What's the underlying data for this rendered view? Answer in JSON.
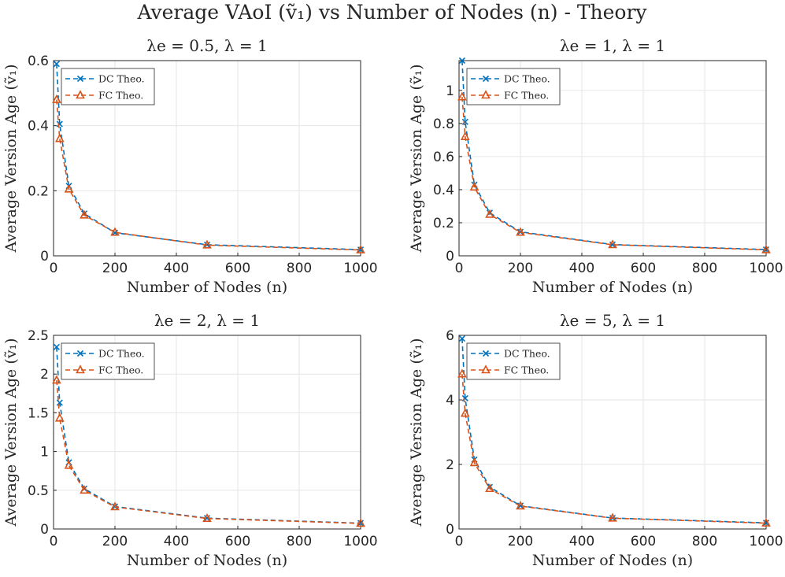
{
  "figure": {
    "suptitle": "Average VAoI (ṽ₁) vs Number of Nodes (n) - Theory"
  },
  "chart_data": [
    {
      "type": "line",
      "title": "λe = 0.5, λ = 1",
      "xlabel": "Number of Nodes (n)",
      "ylabel": "Average Version Age (ṽ₁)",
      "xlim": [
        0,
        1000
      ],
      "ylim": [
        0,
        0.6
      ],
      "xticks": [
        0,
        200,
        400,
        600,
        800,
        1000
      ],
      "yticks": [
        0,
        0.2,
        0.4,
        0.6
      ],
      "ytick_labels": [
        "0",
        "0.2",
        "0.4",
        "0.6"
      ],
      "x": [
        10,
        20,
        50,
        100,
        200,
        500,
        1000
      ],
      "series": [
        {
          "name": "DC Theo.",
          "color": "#0072BD",
          "marker": "x",
          "values": [
            0.59,
            0.405,
            0.215,
            0.13,
            0.071,
            0.034,
            0.019
          ]
        },
        {
          "name": "FC Theo.",
          "color": "#D95319",
          "marker": "triangle",
          "values": [
            0.48,
            0.36,
            0.205,
            0.125,
            0.072,
            0.033,
            0.018
          ]
        }
      ],
      "legend": "top-left",
      "grid": true
    },
    {
      "type": "line",
      "title": "λe = 1, λ = 1",
      "xlabel": "Number of Nodes (n)",
      "ylabel": "Average Version Age (ṽ₁)",
      "xlim": [
        0,
        1000
      ],
      "ylim": [
        0,
        1.18
      ],
      "xticks": [
        0,
        200,
        400,
        600,
        800,
        1000
      ],
      "yticks": [
        0,
        0.2,
        0.4,
        0.6,
        0.8,
        1
      ],
      "ytick_labels": [
        "0",
        "0.2",
        "0.4",
        "0.6",
        "0.8",
        "1"
      ],
      "x": [
        10,
        20,
        50,
        100,
        200,
        500,
        1000
      ],
      "series": [
        {
          "name": "DC Theo.",
          "color": "#0072BD",
          "marker": "x",
          "values": [
            1.18,
            0.81,
            0.43,
            0.26,
            0.145,
            0.068,
            0.038
          ]
        },
        {
          "name": "FC Theo.",
          "color": "#D95319",
          "marker": "triangle",
          "values": [
            0.96,
            0.72,
            0.415,
            0.25,
            0.142,
            0.067,
            0.036
          ]
        }
      ],
      "legend": "top-left",
      "grid": true
    },
    {
      "type": "line",
      "title": "λe = 2, λ = 1",
      "xlabel": "Number of Nodes (n)",
      "ylabel": "Average Version Age (ṽ₁)",
      "xlim": [
        0,
        1000
      ],
      "ylim": [
        0,
        2.5
      ],
      "xticks": [
        0,
        200,
        400,
        600,
        800,
        1000
      ],
      "yticks": [
        0,
        0.5,
        1,
        1.5,
        2,
        2.5
      ],
      "ytick_labels": [
        "0",
        "0.5",
        "1",
        "1.5",
        "2",
        "2.5"
      ],
      "x": [
        10,
        20,
        50,
        100,
        200,
        500,
        1000
      ],
      "series": [
        {
          "name": "DC Theo.",
          "color": "#0072BD",
          "marker": "x",
          "values": [
            2.35,
            1.63,
            0.86,
            0.52,
            0.29,
            0.14,
            0.075
          ]
        },
        {
          "name": "FC Theo.",
          "color": "#D95319",
          "marker": "triangle",
          "values": [
            1.92,
            1.43,
            0.82,
            0.5,
            0.285,
            0.135,
            0.072
          ]
        }
      ],
      "legend": "top-left",
      "grid": true
    },
    {
      "type": "line",
      "title": "λe = 5, λ = 1",
      "xlabel": "Number of Nodes (n)",
      "ylabel": "Average Version Age (ṽ₁)",
      "xlim": [
        0,
        1000
      ],
      "ylim": [
        0,
        6
      ],
      "xticks": [
        0,
        200,
        400,
        600,
        800,
        1000
      ],
      "yticks": [
        0,
        2,
        4,
        6
      ],
      "ytick_labels": [
        "0",
        "2",
        "4",
        "6"
      ],
      "x": [
        10,
        20,
        50,
        100,
        200,
        500,
        1000
      ],
      "series": [
        {
          "name": "DC Theo.",
          "color": "#0072BD",
          "marker": "x",
          "values": [
            5.9,
            4.05,
            2.15,
            1.3,
            0.72,
            0.34,
            0.19
          ]
        },
        {
          "name": "FC Theo.",
          "color": "#D95319",
          "marker": "triangle",
          "values": [
            4.8,
            3.58,
            2.05,
            1.25,
            0.71,
            0.335,
            0.18
          ]
        }
      ],
      "legend": "top-left",
      "grid": true
    }
  ]
}
